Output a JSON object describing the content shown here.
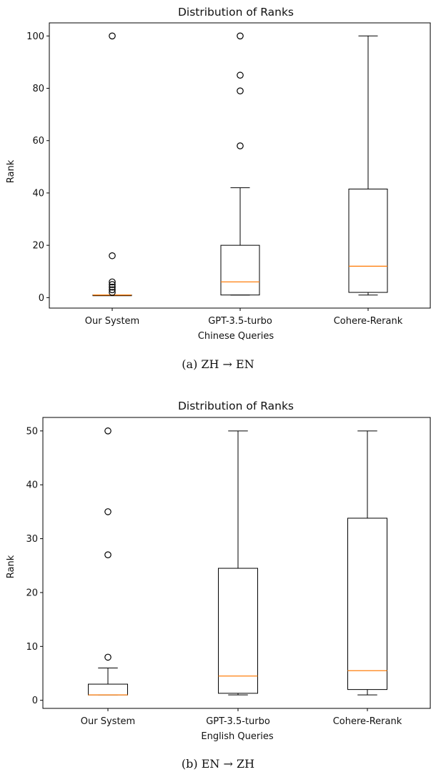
{
  "chart_data": [
    {
      "type": "box",
      "title": "Distribution of Ranks",
      "ylabel": "Rank",
      "xlabel": "Chinese Queries",
      "caption": "(a) ZH → EN",
      "ylim": [
        -4,
        105
      ],
      "yticks": [
        0,
        20,
        40,
        60,
        80,
        100
      ],
      "categories": [
        "Our System",
        "GPT-3.5-turbo",
        "Cohere-Rerank"
      ],
      "series": [
        {
          "whisker_low": 1,
          "q1": 1,
          "median": 1,
          "q3": 1,
          "whisker_high": 1,
          "outliers": [
            2,
            3,
            4,
            5,
            6,
            16,
            100
          ]
        },
        {
          "whisker_low": 1,
          "q1": 1,
          "median": 6,
          "q3": 20,
          "whisker_high": 42,
          "outliers": [
            58,
            79,
            85,
            100
          ]
        },
        {
          "whisker_low": 1,
          "q1": 2,
          "median": 12,
          "q3": 41.5,
          "whisker_high": 100,
          "outliers": []
        }
      ],
      "colors": {
        "box": "#000000",
        "median": "#ff7f0e"
      }
    },
    {
      "type": "box",
      "title": "Distribution of Ranks",
      "ylabel": "Rank",
      "xlabel": "English Queries",
      "caption": "(b) EN → ZH",
      "ylim": [
        -1.5,
        52.5
      ],
      "yticks": [
        0,
        10,
        20,
        30,
        40,
        50
      ],
      "categories": [
        "Our System",
        "GPT-3.5-turbo",
        "Cohere-Rerank"
      ],
      "series": [
        {
          "whisker_low": 1,
          "q1": 1,
          "median": 1,
          "q3": 3,
          "whisker_high": 6,
          "outliers": [
            8,
            27,
            35,
            50
          ]
        },
        {
          "whisker_low": 1,
          "q1": 1.3,
          "median": 4.5,
          "q3": 24.5,
          "whisker_high": 50,
          "outliers": []
        },
        {
          "whisker_low": 1,
          "q1": 2,
          "median": 5.5,
          "q3": 33.8,
          "whisker_high": 50,
          "outliers": []
        }
      ],
      "colors": {
        "box": "#000000",
        "median": "#ff7f0e"
      }
    }
  ]
}
